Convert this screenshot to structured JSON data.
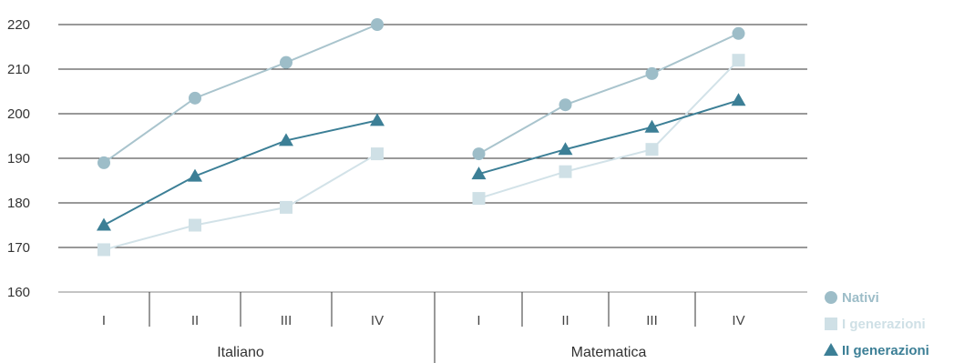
{
  "chart_data": {
    "type": "line",
    "groups": [
      {
        "name": "Italiano",
        "categories": [
          "I",
          "II",
          "III",
          "IV"
        ]
      },
      {
        "name": "Matematica",
        "categories": [
          "I",
          "II",
          "III",
          "IV"
        ]
      }
    ],
    "series": [
      {
        "name": "Nativi",
        "marker": "circle",
        "color": "#9dbdc8",
        "line_color": "#a9c4cd",
        "values": [
          [
            189,
            203.5,
            211.5,
            220
          ],
          [
            191,
            202,
            209,
            218
          ]
        ]
      },
      {
        "name": "I generazioni",
        "marker": "square",
        "color": "#cfe0e6",
        "line_color": "#d2e2e8",
        "values": [
          [
            169.5,
            175,
            179,
            191
          ],
          [
            181,
            187,
            192,
            212
          ]
        ]
      },
      {
        "name": "II generazioni",
        "marker": "triangle",
        "color": "#3c7f96",
        "line_color": "#3c7f96",
        "values": [
          [
            175,
            186,
            194,
            198.5
          ],
          [
            186.5,
            192,
            197,
            203
          ]
        ]
      }
    ],
    "y_ticks": [
      "160",
      "170",
      "180",
      "190",
      "200",
      "210",
      "220"
    ],
    "ylim": [
      160,
      220
    ],
    "grid": true,
    "legend_position": "bottom-right"
  }
}
